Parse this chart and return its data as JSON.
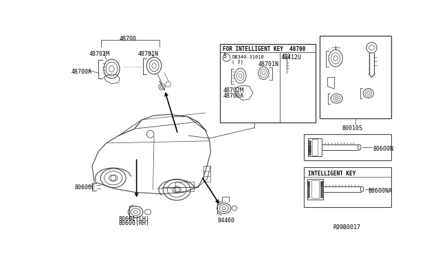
{
  "bg_color": "#ffffff",
  "lc": "#444444",
  "tc": "#000000",
  "fs": 6.0,
  "labels": {
    "48700": "48700",
    "48702M": "48702M",
    "48701N": "48701N",
    "48700A": "48700A",
    "ik_title": "FOR INTELLIGENT KEY  48700",
    "db340_s": "S",
    "db340": "DB340-31010",
    "db340_2": "( 2)",
    "48412U": "48412U",
    "48701N_b": "48701N",
    "48702M_b": "48702M",
    "48700A_b": "48700A",
    "80010S": "80010S",
    "80600N": "80600N",
    "80600E": "80600E",
    "80601LH": "80601(LH)",
    "80600RH": "80600(RH)",
    "84460": "84460",
    "ik_label": "INTELLIGENT KEY",
    "80600NA": "80600NA",
    "ref": "R99B0017"
  }
}
